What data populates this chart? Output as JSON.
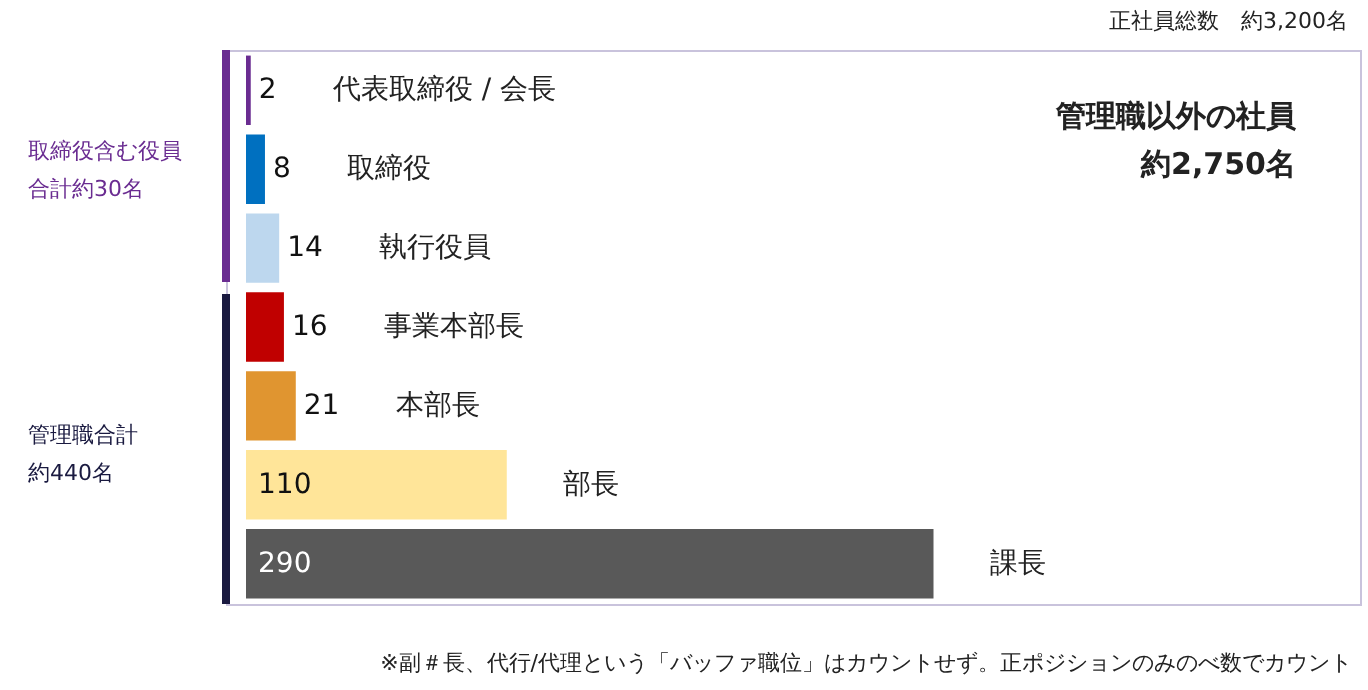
{
  "chart_data": {
    "type": "bar",
    "orientation": "horizontal",
    "data_labels": true,
    "tick_labels": false,
    "title": "正社員総数　約3,200名",
    "categories": [
      "代表取締役 / 会長",
      "取締役",
      "執行役員",
      "事業本部長",
      "本部長",
      "部長",
      "課長"
    ],
    "values": [
      2,
      8,
      14,
      16,
      21,
      110,
      290
    ],
    "colors": [
      "#6a2c91",
      "#0070c0",
      "#bdd7ee",
      "#c00000",
      "#e09530",
      "#ffe599",
      "#595959"
    ],
    "annotations": [
      "管理職以外の社員約2,750名",
      "取締役含む役員合計約30名",
      "管理職合計約440名",
      "※副＃長、代行/代理という「バッファ職位」はカウントせず。正ポジションのみのべ数でカウント"
    ]
  }
}
